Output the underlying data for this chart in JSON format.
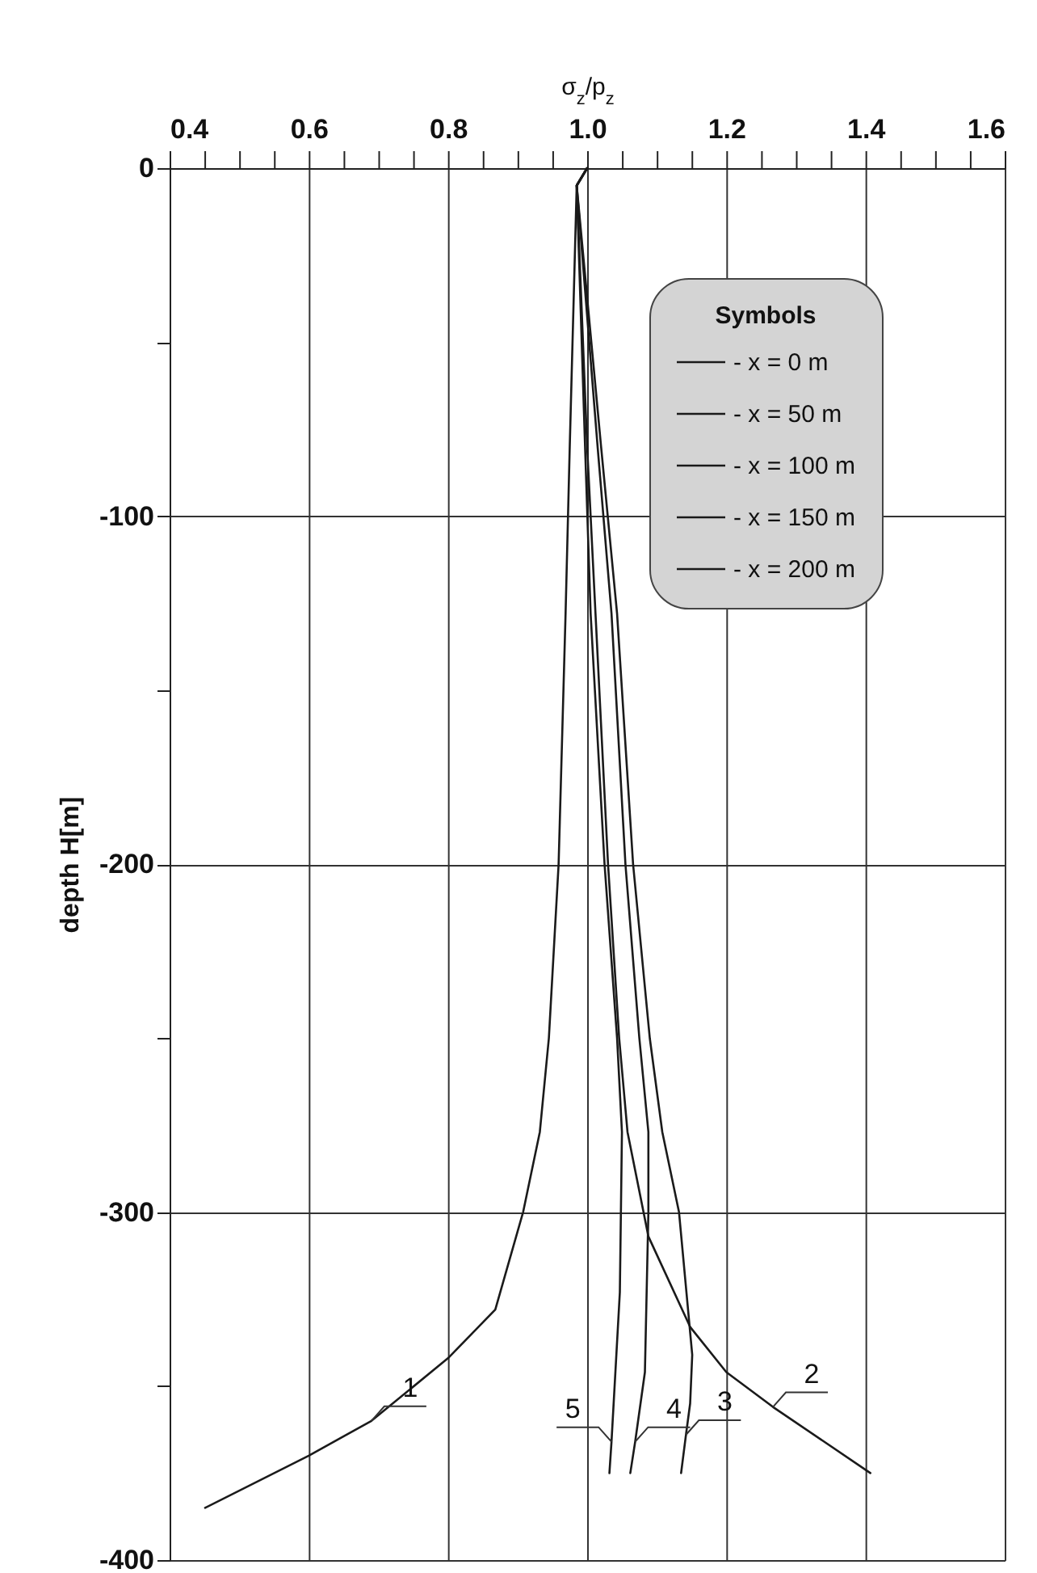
{
  "chart_data": {
    "type": "line",
    "xlabel": "σ$_{z}$/p$_{z}$",
    "ylabel": "depth H[m]",
    "legend_title": "Symbols",
    "xlim": [
      0.4,
      1.6
    ],
    "ylim": [
      -400,
      0
    ],
    "xticks": [
      0.4,
      {
        "value": 0.45,
        "label": null
      },
      {
        "value": 0.5,
        "label": null
      },
      {
        "value": 0.55,
        "label": null
      },
      0.6,
      {
        "value": 0.65,
        "label": null
      },
      {
        "value": 0.7,
        "label": null
      },
      {
        "value": 0.75,
        "label": null
      },
      0.8,
      {
        "value": 0.85,
        "label": null
      },
      {
        "value": 0.9,
        "label": null
      },
      {
        "value": 0.95,
        "label": null
      },
      {
        "value": 1.0,
        "label": "1.0"
      },
      {
        "value": 1.05,
        "label": null
      },
      {
        "value": 1.1,
        "label": null
      },
      {
        "value": 1.15,
        "label": null
      },
      1.2,
      {
        "value": 1.25,
        "label": null
      },
      {
        "value": 1.3,
        "label": null
      },
      {
        "value": 1.35,
        "label": null
      },
      1.4,
      {
        "value": 1.45,
        "label": null
      },
      {
        "value": 1.5,
        "label": null
      },
      {
        "value": 1.55,
        "label": null
      },
      1.6
    ],
    "yticks": [
      -400,
      {
        "value": -350,
        "label": null
      },
      -300,
      {
        "value": -250,
        "label": null
      },
      -200,
      {
        "value": -150,
        "label": null
      },
      -100,
      {
        "value": -50,
        "label": null
      },
      0
    ],
    "grid": true,
    "legend": "top right",
    "marker": "none",
    "line_style": "solid",
    "series": [
      {
        "name": "- x = 0 m",
        "color": "#1a1a1a",
        "x": [
          1.0,
          0.985,
          0.975,
          0.969,
          0.959,
          0.945,
          0.932,
          0.908,
          0.868,
          0.8,
          0.69,
          0.6,
          0.451
        ],
        "values": [
          0,
          -5,
          -80,
          -128,
          -200,
          -250,
          -277,
          -300,
          -328,
          -342,
          -360,
          -370,
          -385
        ]
      },
      {
        "name": "- x = 50 m",
        "color": "#1a1a1a",
        "x": [
          1.0,
          0.985,
          1.0,
          1.012,
          1.03,
          1.046,
          1.058,
          1.088,
          1.148,
          1.2,
          1.267,
          1.407
        ],
        "values": [
          0,
          -5,
          -80,
          -128,
          -200,
          -250,
          -277,
          -307,
          -333,
          -346,
          -356,
          -375
        ]
      },
      {
        "name": "- x = 100 m",
        "color": "#1a1a1a",
        "x": [
          1.0,
          0.985,
          1.02,
          1.043,
          1.066,
          1.09,
          1.108,
          1.132,
          1.151,
          1.148,
          1.142,
          1.135
        ],
        "values": [
          0,
          -5,
          -80,
          -128,
          -200,
          -250,
          -277,
          -300,
          -341,
          -355,
          -364,
          -375
        ]
      },
      {
        "name": "- x = 150 m",
        "color": "#1a1a1a",
        "x": [
          1.0,
          0.985,
          1.015,
          1.035,
          1.055,
          1.075,
          1.088,
          1.088,
          1.083,
          1.069,
          1.062
        ],
        "values": [
          0,
          -5,
          -80,
          -128,
          -200,
          -250,
          -277,
          -300,
          -346,
          -366,
          -375
        ]
      },
      {
        "name": "- x = 200 m",
        "color": "#1a1a1a",
        "x": [
          1.0,
          0.985,
          0.997,
          1.005,
          1.025,
          1.043,
          1.05,
          1.047,
          1.035,
          1.032
        ],
        "values": [
          0,
          -5,
          -80,
          -128,
          -200,
          -250,
          -277,
          -323,
          -366,
          -375
        ]
      }
    ],
    "annotations": [
      {
        "text": "1",
        "x": 0.69,
        "y": -360
      },
      {
        "text": "2",
        "x": 1.267,
        "y": -356
      },
      {
        "text": "3",
        "x": 1.142,
        "y": -364
      },
      {
        "text": "4",
        "x": 1.069,
        "y": -366
      },
      {
        "text": "5",
        "x": 1.035,
        "y": -366
      }
    ]
  }
}
